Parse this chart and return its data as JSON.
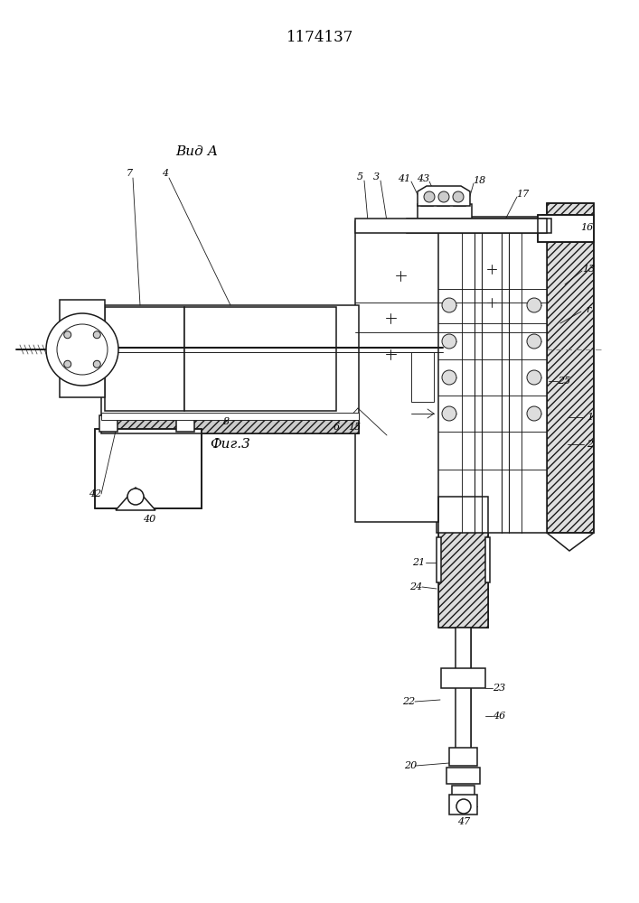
{
  "title": "1174137",
  "vid_a": "Вид А",
  "fig3": "Фиг.3",
  "bg": "#ffffff",
  "lc": "#1a1a1a"
}
